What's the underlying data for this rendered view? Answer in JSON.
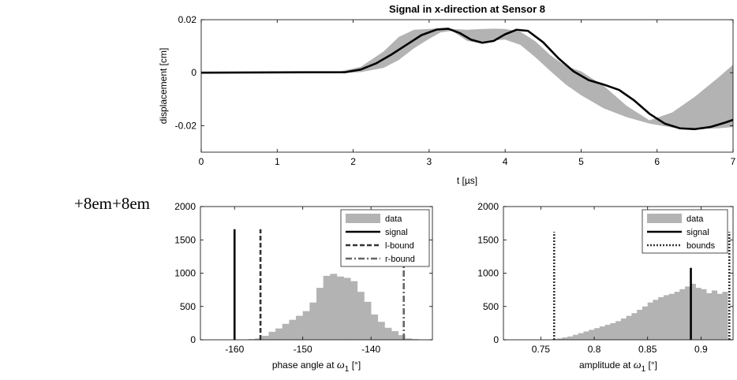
{
  "stray_text": "+8em+8em",
  "chart_data": [
    {
      "type": "area",
      "title": "Signal in x-direction at Sensor 8",
      "xlabel": "t [µs]",
      "ylabel": "displacement [cm]",
      "xlim": [
        0,
        7
      ],
      "ylim": [
        -0.03,
        0.02
      ],
      "x_ticks": [
        0,
        1,
        2,
        3,
        4,
        5,
        6,
        7
      ],
      "y_ticks": [
        -0.02,
        0,
        0.02
      ],
      "y_tick_labels": [
        "-0.02",
        "0",
        "0.02"
      ],
      "band_color": "#b3b3b3",
      "line_color": "#000000",
      "band": {
        "x": [
          0,
          1.8,
          2.1,
          2.4,
          2.6,
          2.8,
          3.0,
          3.15,
          3.3,
          3.5,
          3.7,
          3.85,
          4.0,
          4.2,
          4.4,
          4.6,
          4.8,
          5.0,
          5.3,
          5.6,
          5.9,
          6.2,
          6.5,
          6.8,
          7.0
        ],
        "upper": [
          0,
          0.0003,
          0.0022,
          0.008,
          0.0135,
          0.0162,
          0.0165,
          0.0168,
          0.0165,
          0.0162,
          0.0165,
          0.0166,
          0.0165,
          0.0155,
          0.0118,
          0.0065,
          0.0025,
          0.0005,
          -0.005,
          -0.0125,
          -0.018,
          -0.015,
          -0.009,
          -0.002,
          0.003
        ],
        "lower": [
          0,
          -0.0002,
          0.0002,
          0.0018,
          0.0048,
          0.0092,
          0.0128,
          0.0152,
          0.0158,
          0.012,
          0.011,
          0.0122,
          0.0125,
          0.0105,
          0.0058,
          0.0005,
          -0.0045,
          -0.0085,
          -0.0135,
          -0.0168,
          -0.0192,
          -0.0207,
          -0.0213,
          -0.021,
          -0.0205
        ]
      },
      "signal": {
        "x": [
          0,
          1.9,
          2.1,
          2.3,
          2.5,
          2.7,
          2.9,
          3.1,
          3.25,
          3.4,
          3.55,
          3.7,
          3.85,
          4.0,
          4.15,
          4.3,
          4.5,
          4.7,
          4.9,
          5.1,
          5.3,
          5.5,
          5.7,
          5.9,
          6.1,
          6.3,
          6.5,
          6.7,
          6.9,
          7.0
        ],
        "y": [
          0,
          0.0002,
          0.0012,
          0.0035,
          0.0068,
          0.0105,
          0.0142,
          0.0163,
          0.0166,
          0.015,
          0.0125,
          0.0113,
          0.012,
          0.0145,
          0.0162,
          0.0158,
          0.0115,
          0.0055,
          0.0005,
          -0.0028,
          -0.0045,
          -0.0065,
          -0.0105,
          -0.0155,
          -0.0192,
          -0.021,
          -0.0213,
          -0.0205,
          -0.0188,
          -0.0178
        ]
      }
    },
    {
      "type": "bar",
      "xlabel": "phase angle at",
      "xlabel_symbol": "ω",
      "xlabel_sub": "1",
      "xlabel_unit": "[°]",
      "xlim": [
        -165,
        -131
      ],
      "ylim": [
        0,
        2000
      ],
      "x_ticks": [
        -160,
        -150,
        -140
      ],
      "y_ticks": [
        0,
        500,
        1000,
        1500,
        2000
      ],
      "bin_width": 1,
      "bin_starts": [
        -158,
        -157,
        -156,
        -155,
        -154,
        -153,
        -152,
        -151,
        -150,
        -149,
        -148,
        -147,
        -146,
        -145,
        -144,
        -143,
        -142,
        -141,
        -140,
        -139,
        -138,
        -137,
        -136,
        -135,
        -134
      ],
      "counts": [
        10,
        20,
        60,
        120,
        170,
        240,
        300,
        360,
        430,
        560,
        780,
        960,
        990,
        950,
        930,
        880,
        720,
        570,
        380,
        270,
        180,
        130,
        70,
        20,
        10
      ],
      "lines": [
        {
          "name": "signal",
          "x": -160,
          "height": 1660,
          "style": "solid",
          "color": "#000000"
        },
        {
          "name": "l-bound",
          "x": -156.2,
          "height": 1660,
          "style": "dashed",
          "color": "#333333"
        },
        {
          "name": "r-bound",
          "x": -135.2,
          "height": 1660,
          "style": "dashdot",
          "color": "#666666"
        }
      ],
      "legend": {
        "placement": "top-right",
        "entries": [
          {
            "label": "data",
            "kind": "patch",
            "color": "#b3b3b3"
          },
          {
            "label": "signal",
            "kind": "solid",
            "color": "#000000"
          },
          {
            "label": "l-bound",
            "kind": "dashed",
            "color": "#333333"
          },
          {
            "label": "r-bound",
            "kind": "dashdot",
            "color": "#666666"
          }
        ]
      }
    },
    {
      "type": "bar",
      "xlabel": "amplitude at",
      "xlabel_symbol": "ω",
      "xlabel_sub": "1",
      "xlabel_unit": "[°]",
      "xlim": [
        0.715,
        0.93
      ],
      "ylim": [
        0,
        2000
      ],
      "x_ticks": [
        0.75,
        0.8,
        0.85,
        0.9
      ],
      "y_ticks": [
        0,
        500,
        1000,
        1500,
        2000
      ],
      "bin_width": 0.005,
      "bin_starts": [
        0.76,
        0.765,
        0.77,
        0.775,
        0.78,
        0.785,
        0.79,
        0.795,
        0.8,
        0.805,
        0.81,
        0.815,
        0.82,
        0.825,
        0.83,
        0.835,
        0.84,
        0.845,
        0.85,
        0.855,
        0.86,
        0.865,
        0.87,
        0.875,
        0.88,
        0.885,
        0.89,
        0.895,
        0.9,
        0.905,
        0.91,
        0.915,
        0.92
      ],
      "counts": [
        10,
        20,
        35,
        50,
        75,
        100,
        125,
        150,
        175,
        200,
        225,
        250,
        280,
        320,
        360,
        400,
        450,
        500,
        560,
        600,
        640,
        670,
        690,
        720,
        760,
        800,
        840,
        780,
        760,
        700,
        740,
        690,
        720
      ],
      "lines": [
        {
          "name": "bounds",
          "x": 0.7625,
          "height": 1620,
          "style": "dotted",
          "color": "#333333"
        },
        {
          "name": "signal",
          "x": 0.8905,
          "height": 1080,
          "style": "solid",
          "color": "#000000"
        },
        {
          "name": "bounds",
          "x": 0.9265,
          "height": 1620,
          "style": "dotted",
          "color": "#333333"
        }
      ],
      "legend": {
        "placement": "top-right",
        "entries": [
          {
            "label": "data",
            "kind": "patch",
            "color": "#b3b3b3"
          },
          {
            "label": "signal",
            "kind": "solid",
            "color": "#000000"
          },
          {
            "label": "bounds",
            "kind": "dotted",
            "color": "#333333"
          }
        ]
      }
    }
  ]
}
